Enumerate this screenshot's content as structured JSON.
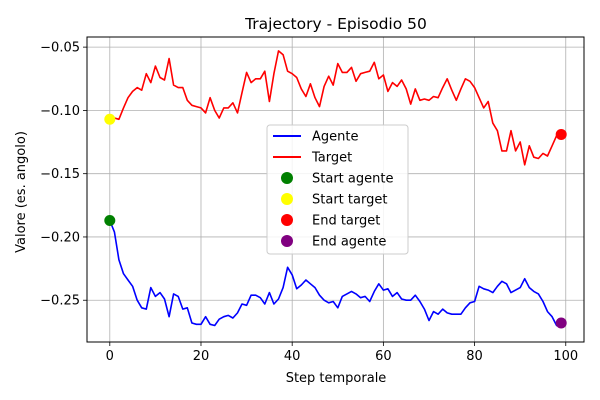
{
  "chart_data": {
    "type": "line",
    "title": "Trajectory - Episodio 50",
    "xlabel": "Step temporale",
    "ylabel": "Valore (es. angolo)",
    "xlim": [
      -5,
      104
    ],
    "ylim": [
      -0.283,
      -0.042
    ],
    "x_ticks": [
      0,
      20,
      40,
      60,
      80,
      100
    ],
    "y_ticks": [
      -0.25,
      -0.2,
      -0.15,
      -0.1,
      -0.05
    ],
    "x_tick_labels": [
      "0",
      "20",
      "40",
      "60",
      "80",
      "100"
    ],
    "y_tick_labels": [
      "−0.25",
      "−0.20",
      "−0.15",
      "−0.10",
      "−0.05"
    ],
    "grid": true,
    "legend_position": "center",
    "series": [
      {
        "name": "Agente",
        "color": "#0000ff",
        "x": [
          0,
          1,
          2,
          3,
          4,
          5,
          6,
          7,
          8,
          9,
          10,
          11,
          12,
          13,
          14,
          15,
          16,
          17,
          18,
          19,
          20,
          21,
          22,
          23,
          24,
          25,
          26,
          27,
          28,
          29,
          30,
          31,
          32,
          33,
          34,
          35,
          36,
          37,
          38,
          39,
          40,
          41,
          42,
          43,
          44,
          45,
          46,
          47,
          48,
          49,
          50,
          51,
          52,
          53,
          54,
          55,
          56,
          57,
          58,
          59,
          60,
          61,
          62,
          63,
          64,
          65,
          66,
          67,
          68,
          69,
          70,
          71,
          72,
          73,
          74,
          75,
          76,
          77,
          78,
          79,
          80,
          81,
          82,
          83,
          84,
          85,
          86,
          87,
          88,
          89,
          90,
          91,
          92,
          93,
          94,
          95,
          96,
          97,
          98,
          99
        ],
        "y": [
          -0.187,
          -0.196,
          -0.218,
          -0.229,
          -0.234,
          -0.239,
          -0.25,
          -0.256,
          -0.257,
          -0.24,
          -0.247,
          -0.244,
          -0.249,
          -0.263,
          -0.245,
          -0.247,
          -0.257,
          -0.256,
          -0.268,
          -0.269,
          -0.269,
          -0.263,
          -0.269,
          -0.27,
          -0.265,
          -0.263,
          -0.262,
          -0.264,
          -0.26,
          -0.253,
          -0.254,
          -0.246,
          -0.246,
          -0.248,
          -0.253,
          -0.244,
          -0.253,
          -0.249,
          -0.24,
          -0.224,
          -0.23,
          -0.241,
          -0.238,
          -0.234,
          -0.237,
          -0.24,
          -0.246,
          -0.25,
          -0.252,
          -0.251,
          -0.256,
          -0.247,
          -0.245,
          -0.243,
          -0.245,
          -0.248,
          -0.247,
          -0.251,
          -0.243,
          -0.237,
          -0.242,
          -0.241,
          -0.247,
          -0.244,
          -0.249,
          -0.25,
          -0.25,
          -0.246,
          -0.251,
          -0.257,
          -0.266,
          -0.259,
          -0.261,
          -0.257,
          -0.26,
          -0.261,
          -0.261,
          -0.261,
          -0.256,
          -0.252,
          -0.251,
          -0.239,
          -0.241,
          -0.242,
          -0.244,
          -0.239,
          -0.235,
          -0.237,
          -0.244,
          -0.242,
          -0.24,
          -0.233,
          -0.24,
          -0.243,
          -0.245,
          -0.251,
          -0.259,
          -0.263,
          -0.27,
          -0.268
        ]
      },
      {
        "name": "Target",
        "color": "#ff0000",
        "x": [
          0,
          1,
          2,
          3,
          4,
          5,
          6,
          7,
          8,
          9,
          10,
          11,
          12,
          13,
          14,
          15,
          16,
          17,
          18,
          19,
          20,
          21,
          22,
          23,
          24,
          25,
          26,
          27,
          28,
          29,
          30,
          31,
          32,
          33,
          34,
          35,
          36,
          37,
          38,
          39,
          40,
          41,
          42,
          43,
          44,
          45,
          46,
          47,
          48,
          49,
          50,
          51,
          52,
          53,
          54,
          55,
          56,
          57,
          58,
          59,
          60,
          61,
          62,
          63,
          64,
          65,
          66,
          67,
          68,
          69,
          70,
          71,
          72,
          73,
          74,
          75,
          76,
          77,
          78,
          79,
          80,
          81,
          82,
          83,
          84,
          85,
          86,
          87,
          88,
          89,
          90,
          91,
          92,
          93,
          94,
          95,
          96,
          97,
          98,
          99
        ],
        "y": [
          -0.107,
          -0.106,
          -0.107,
          -0.098,
          -0.09,
          -0.085,
          -0.082,
          -0.084,
          -0.071,
          -0.078,
          -0.065,
          -0.074,
          -0.076,
          -0.059,
          -0.08,
          -0.082,
          -0.082,
          -0.092,
          -0.096,
          -0.097,
          -0.098,
          -0.102,
          -0.09,
          -0.1,
          -0.106,
          -0.098,
          -0.098,
          -0.094,
          -0.102,
          -0.086,
          -0.07,
          -0.078,
          -0.075,
          -0.075,
          -0.069,
          -0.093,
          -0.071,
          -0.053,
          -0.056,
          -0.069,
          -0.071,
          -0.074,
          -0.083,
          -0.089,
          -0.079,
          -0.09,
          -0.097,
          -0.081,
          -0.073,
          -0.08,
          -0.063,
          -0.07,
          -0.07,
          -0.066,
          -0.077,
          -0.071,
          -0.07,
          -0.069,
          -0.062,
          -0.075,
          -0.072,
          -0.085,
          -0.078,
          -0.081,
          -0.076,
          -0.083,
          -0.095,
          -0.083,
          -0.092,
          -0.091,
          -0.092,
          -0.089,
          -0.09,
          -0.082,
          -0.075,
          -0.084,
          -0.092,
          -0.083,
          -0.075,
          -0.077,
          -0.082,
          -0.09,
          -0.098,
          -0.093,
          -0.11,
          -0.116,
          -0.132,
          -0.132,
          -0.116,
          -0.132,
          -0.125,
          -0.143,
          -0.128,
          -0.137,
          -0.138,
          -0.134,
          -0.136,
          -0.128,
          -0.12,
          -0.119
        ]
      }
    ],
    "points": [
      {
        "name": "Start agente",
        "x": 0,
        "y": -0.187,
        "color": "#008000"
      },
      {
        "name": "Start target",
        "x": 0,
        "y": -0.107,
        "color": "#ffff00"
      },
      {
        "name": "End target",
        "x": 99,
        "y": -0.119,
        "color": "#ff0000"
      },
      {
        "name": "End agente",
        "x": 99,
        "y": -0.268,
        "color": "#800080"
      }
    ]
  }
}
